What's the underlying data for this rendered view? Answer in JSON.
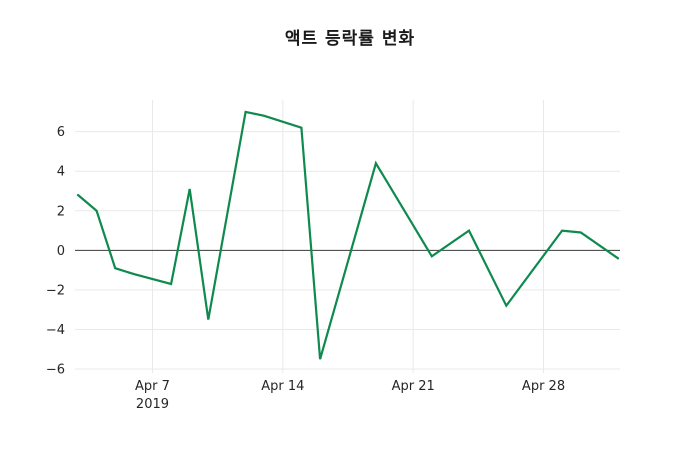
{
  "chart_data": {
    "type": "line",
    "title": "액트 등락률 변화",
    "xlabel": "",
    "ylabel": "",
    "x": [
      "2019-04-03",
      "2019-04-04",
      "2019-04-05",
      "2019-04-06",
      "2019-04-08",
      "2019-04-09",
      "2019-04-10",
      "2019-04-12",
      "2019-04-13",
      "2019-04-15",
      "2019-04-16",
      "2019-04-19",
      "2019-04-22",
      "2019-04-24",
      "2019-04-26",
      "2019-04-29",
      "2019-04-30",
      "2019-05-02"
    ],
    "values": [
      2.8,
      2.0,
      -0.9,
      -1.2,
      -1.7,
      3.1,
      -3.5,
      7.0,
      6.8,
      6.2,
      -5.5,
      4.4,
      -0.3,
      1.0,
      -2.8,
      1.0,
      0.9,
      -0.4
    ],
    "x_ticks": [
      {
        "label": "Apr 7",
        "sublabel": "2019",
        "date": "2019-04-07"
      },
      {
        "label": "Apr 14",
        "sublabel": "",
        "date": "2019-04-14"
      },
      {
        "label": "Apr 21",
        "sublabel": "",
        "date": "2019-04-21"
      },
      {
        "label": "Apr 28",
        "sublabel": "",
        "date": "2019-04-28"
      }
    ],
    "y_ticks": [
      -6,
      -4,
      -2,
      0,
      2,
      4,
      6
    ],
    "x_range": [
      "2019-04-03",
      "2019-05-02"
    ],
    "y_range": [
      -6.2,
      7.6
    ],
    "grid": true,
    "legend": "none",
    "line_color": "#0f8a4e",
    "grid_color": "#e9e9e9",
    "zero_line_color": "#3a3a3a",
    "text_color": "#262626",
    "background": "#ffffff"
  }
}
